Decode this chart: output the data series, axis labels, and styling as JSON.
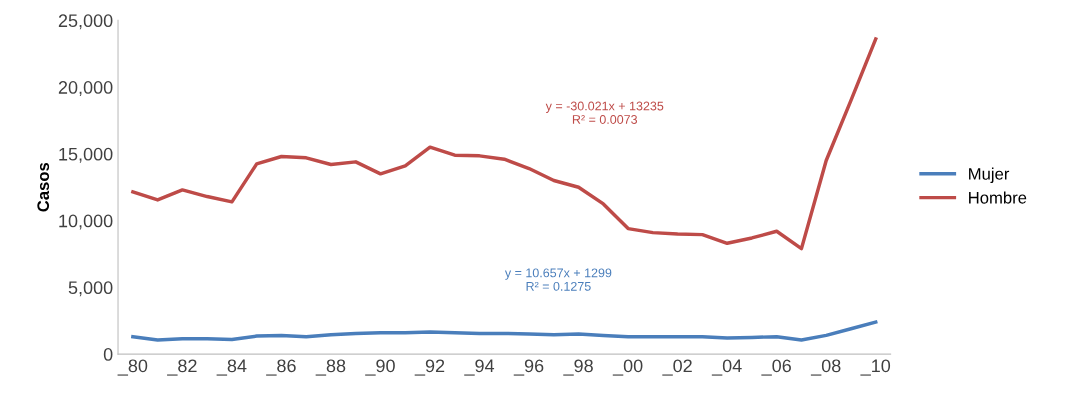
{
  "chart_data": {
    "type": "line",
    "ylabel": "Casos",
    "categories": [
      "_80",
      null,
      "_82",
      null,
      "_84",
      null,
      "_86",
      null,
      "_88",
      null,
      "_90",
      null,
      "_92",
      null,
      "_94",
      null,
      "_96",
      null,
      "_98",
      null,
      "_00",
      null,
      "_02",
      null,
      "_04",
      null,
      "_06",
      null,
      "_08",
      null,
      "_10"
    ],
    "series": [
      {
        "name": "Mujer",
        "color": "#4a7ebb",
        "values": [
          1300,
          1050,
          1150,
          1150,
          1100,
          1350,
          1400,
          1300,
          1450,
          1550,
          1600,
          1600,
          1650,
          1600,
          1550,
          1550,
          1500,
          1450,
          1500,
          1400,
          1300,
          1300,
          1300,
          1300,
          1200,
          1250,
          1300,
          1050,
          1400,
          1900,
          2400
        ]
      },
      {
        "name": "Hombre",
        "color": "#be4b48",
        "values": [
          12150,
          11550,
          12300,
          11800,
          11400,
          14250,
          14800,
          14700,
          14200,
          14400,
          13500,
          14100,
          15500,
          14900,
          14850,
          14600,
          13900,
          13000,
          12500,
          11250,
          9400,
          9100,
          9000,
          8950,
          8300,
          8700,
          9200,
          7900,
          14500,
          19000,
          23600
        ]
      }
    ],
    "annotations": [
      "y = -30.021x + 13235\nR² = 0.0073",
      "y = 10.657x + 1299\nR² = 0.1275"
    ],
    "ylim": [
      0,
      25000
    ],
    "yticks": [
      {
        "value": 0,
        "label": "0"
      },
      {
        "value": 5000,
        "label": "5,000"
      },
      {
        "value": 10000,
        "label": "10,000"
      },
      {
        "value": 15000,
        "label": "15,000"
      },
      {
        "value": 20000,
        "label": "20,000"
      },
      {
        "value": 25000,
        "label": "25,000"
      }
    ],
    "legend": "right",
    "grid": false
  }
}
